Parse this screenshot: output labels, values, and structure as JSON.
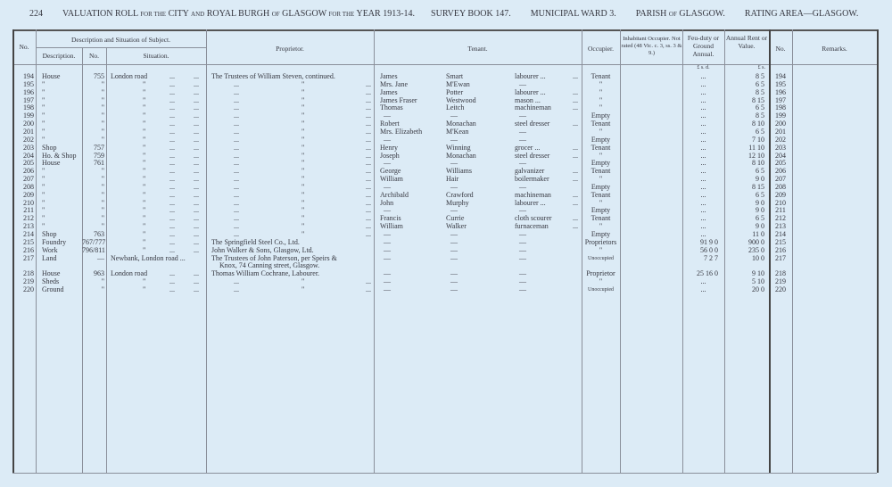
{
  "heading": {
    "page_number": "224",
    "title_a": "VALUATION ROLL",
    "title_b": "for the",
    "title_c": "CITY",
    "title_d": "and",
    "title_e": "ROYAL BURGH",
    "title_f": "of",
    "title_g": "GLASGOW",
    "title_h": "for the",
    "title_i": "YEAR 1913-14.",
    "survey_book": "SURVEY BOOK 147.",
    "ward": "MUNICIPAL WARD 3.",
    "parish_a": "PARISH",
    "parish_b": "of",
    "parish_c": "GLASGOW.",
    "rating_area": "RATING AREA—GLASGOW."
  },
  "columns": {
    "no": "No.",
    "desc_group": "Description and Situation of Subject.",
    "description": "Description.",
    "number": "No.",
    "situation": "Situation.",
    "proprietor": "Proprietor.",
    "tenant": "Tenant.",
    "occupier": "Occupier.",
    "inhabitant": "Inhabitant Occupier. Not rated (48 Vic. c. 3, ss. 3 & 9.)",
    "feu_duty": "Feu-duty or Ground Annual.",
    "annual_rent": "Annual Rent or Value.",
    "no2": "No.",
    "remarks": "Remarks.",
    "feu_units": "£  s.  d.",
    "rent_units": "£  s."
  },
  "leader": "...",
  "ditto": "\"",
  "rows": [
    {
      "no": "194",
      "desc": "House",
      "num": "755",
      "sit": "London road",
      "prop": "The Trustees of William Steven, continued.",
      "first": "James",
      "surname": "Smart",
      "occ": "labourer ...",
      "occupier": "Tenant",
      "feu": "...",
      "rent": "8  5"
    },
    {
      "no": "195",
      "desc": "\"",
      "num": "\"",
      "sit": "\"",
      "prop": "\"",
      "first": "Mrs. Jane",
      "surname": "M'Ewan",
      "occ": "—",
      "occupier": "\"",
      "feu": "...",
      "rent": "6  5"
    },
    {
      "no": "196",
      "desc": "\"",
      "num": "\"",
      "sit": "\"",
      "prop": "\"",
      "first": "James",
      "surname": "Potter",
      "occ": "labourer ...",
      "occupier": "\"",
      "feu": "...",
      "rent": "8  5"
    },
    {
      "no": "197",
      "desc": "\"",
      "num": "\"",
      "sit": "\"",
      "prop": "\"",
      "first": "James Fraser",
      "surname": "Westwood",
      "occ": "mason ...",
      "occupier": "\"",
      "feu": "...",
      "rent": "8 15"
    },
    {
      "no": "198",
      "desc": "\"",
      "num": "\"",
      "sit": "\"",
      "prop": "\"",
      "first": "Thomas",
      "surname": "Leitch",
      "occ": "machineman",
      "occupier": "\"",
      "feu": "...",
      "rent": "6  5"
    },
    {
      "no": "199",
      "desc": "\"",
      "num": "\"",
      "sit": "\"",
      "prop": "\"",
      "first": "—",
      "surname": "—",
      "occ": "—",
      "occupier": "Empty",
      "feu": "...",
      "rent": "8  5"
    },
    {
      "no": "200",
      "desc": "\"",
      "num": "\"",
      "sit": "\"",
      "prop": "\"",
      "first": "Robert",
      "surname": "Monachan",
      "occ": "steel dresser",
      "occupier": "Tenant",
      "feu": "...",
      "rent": "8 10"
    },
    {
      "no": "201",
      "desc": "\"",
      "num": "\"",
      "sit": "\"",
      "prop": "\"",
      "first": "Mrs. Elizabeth",
      "surname": "M'Kean",
      "occ": "—",
      "occupier": "\"",
      "feu": "...",
      "rent": "6  5"
    },
    {
      "no": "202",
      "desc": "\"",
      "num": "\"",
      "sit": "\"",
      "prop": "\"",
      "first": "—",
      "surname": "—",
      "occ": "—",
      "occupier": "Empty",
      "feu": "...",
      "rent": "7 10"
    },
    {
      "no": "203",
      "desc": "Shop",
      "num": "757",
      "sit": "\"",
      "prop": "\"",
      "first": "Henry",
      "surname": "Winning",
      "occ": "grocer ...",
      "occupier": "Tenant",
      "feu": "...",
      "rent": "11 10"
    },
    {
      "no": "204",
      "desc": "Ho. & Shop",
      "num": "759",
      "sit": "\"",
      "prop": "\"",
      "first": "Joseph",
      "surname": "Monachan",
      "occ": "steel dresser",
      "occupier": "\"",
      "feu": "...",
      "rent": "12 10"
    },
    {
      "no": "205",
      "desc": "House",
      "num": "761",
      "sit": "\"",
      "prop": "\"",
      "first": "—",
      "surname": "—",
      "occ": "—",
      "occupier": "Empty",
      "feu": "...",
      "rent": "8 10"
    },
    {
      "no": "206",
      "desc": "\"",
      "num": "\"",
      "sit": "\"",
      "prop": "\"",
      "first": "George",
      "surname": "Williams",
      "occ": "galvanizer",
      "occupier": "Tenant",
      "feu": "...",
      "rent": "6  5"
    },
    {
      "no": "207",
      "desc": "\"",
      "num": "\"",
      "sit": "\"",
      "prop": "\"",
      "first": "William",
      "surname": "Hair",
      "occ": "boilermaker",
      "occupier": "\"",
      "feu": "...",
      "rent": "9  0"
    },
    {
      "no": "208",
      "desc": "\"",
      "num": "\"",
      "sit": "\"",
      "prop": "\"",
      "first": "—",
      "surname": "—",
      "occ": "—",
      "occupier": "Empty",
      "feu": "...",
      "rent": "8 15"
    },
    {
      "no": "209",
      "desc": "\"",
      "num": "\"",
      "sit": "\"",
      "prop": "\"",
      "first": "Archibald",
      "surname": "Crawford",
      "occ": "machineman",
      "occupier": "Tenant",
      "feu": "...",
      "rent": "6  5"
    },
    {
      "no": "210",
      "desc": "\"",
      "num": "\"",
      "sit": "\"",
      "prop": "\"",
      "first": "John",
      "surname": "Murphy",
      "occ": "labourer ...",
      "occupier": "\"",
      "feu": "...",
      "rent": "9  0"
    },
    {
      "no": "211",
      "desc": "\"",
      "num": "\"",
      "sit": "\"",
      "prop": "\"",
      "first": "—",
      "surname": "—",
      "occ": "—",
      "occupier": "Empty",
      "feu": "...",
      "rent": "9  0"
    },
    {
      "no": "212",
      "desc": "\"",
      "num": "\"",
      "sit": "\"",
      "prop": "\"",
      "first": "Francis",
      "surname": "Currie",
      "occ": "cloth scourer",
      "occupier": "Tenant",
      "feu": "...",
      "rent": "6  5"
    },
    {
      "no": "213",
      "desc": "\"",
      "num": "\"",
      "sit": "\"",
      "prop": "\"",
      "first": "William",
      "surname": "Walker",
      "occ": "furnaceman",
      "occupier": "\"",
      "feu": "...",
      "rent": "9  0"
    },
    {
      "no": "214",
      "desc": "Shop",
      "num": "763",
      "sit": "\"",
      "prop": "\"",
      "first": "—",
      "surname": "—",
      "occ": "—",
      "occupier": "Empty",
      "feu": "...",
      "rent": "11  0"
    },
    {
      "no": "215",
      "desc": "Foundry",
      "num": "767/777",
      "sit": "\"",
      "prop": "The Springfield Steel Co., Ltd.",
      "first": "—",
      "surname": "—",
      "occ": "—",
      "occupier": "Proprietors",
      "feu": "91  9  0",
      "rent": "900  0"
    },
    {
      "no": "216",
      "desc": "Work",
      "num": "796/811",
      "sit": "\"",
      "prop": "John Walker & Sons, Glasgow, Ltd.",
      "first": "—",
      "surname": "—",
      "occ": "—",
      "occupier": "\"",
      "feu": "56  0  0",
      "rent": "235  0"
    },
    {
      "no": "217",
      "desc": "Land",
      "num": "—",
      "sit": "Newbank, London road ...",
      "prop": "The Trustees of John Paterson, per Speirs &",
      "prop2": "Knox, 74 Canning street, Glasgow.",
      "first": "—",
      "surname": "—",
      "occ": "—",
      "occupier": "Unoccupied",
      "feu": "7  2  7",
      "rent": "10  0"
    },
    {
      "no": "218",
      "desc": "House",
      "num": "963",
      "sit": "London road",
      "prop": "Thomas William Cochrane, Labourer.",
      "first": "—",
      "surname": "—",
      "occ": "—",
      "occupier": "Proprietor",
      "feu": "25 16  0",
      "rent": "9 10"
    },
    {
      "no": "219",
      "desc": "Sheds",
      "num": "\"",
      "sit": "\"",
      "prop": "\"",
      "first": "—",
      "surname": "—",
      "occ": "—",
      "occupier": "\"",
      "feu": "...",
      "rent": "5 10"
    },
    {
      "no": "220",
      "desc": "Ground",
      "num": "\"",
      "sit": "\"",
      "prop": "\"",
      "first": "—",
      "surname": "—",
      "occ": "—",
      "occupier": "Unoccupied",
      "feu": "...",
      "rent": "20  0"
    }
  ]
}
